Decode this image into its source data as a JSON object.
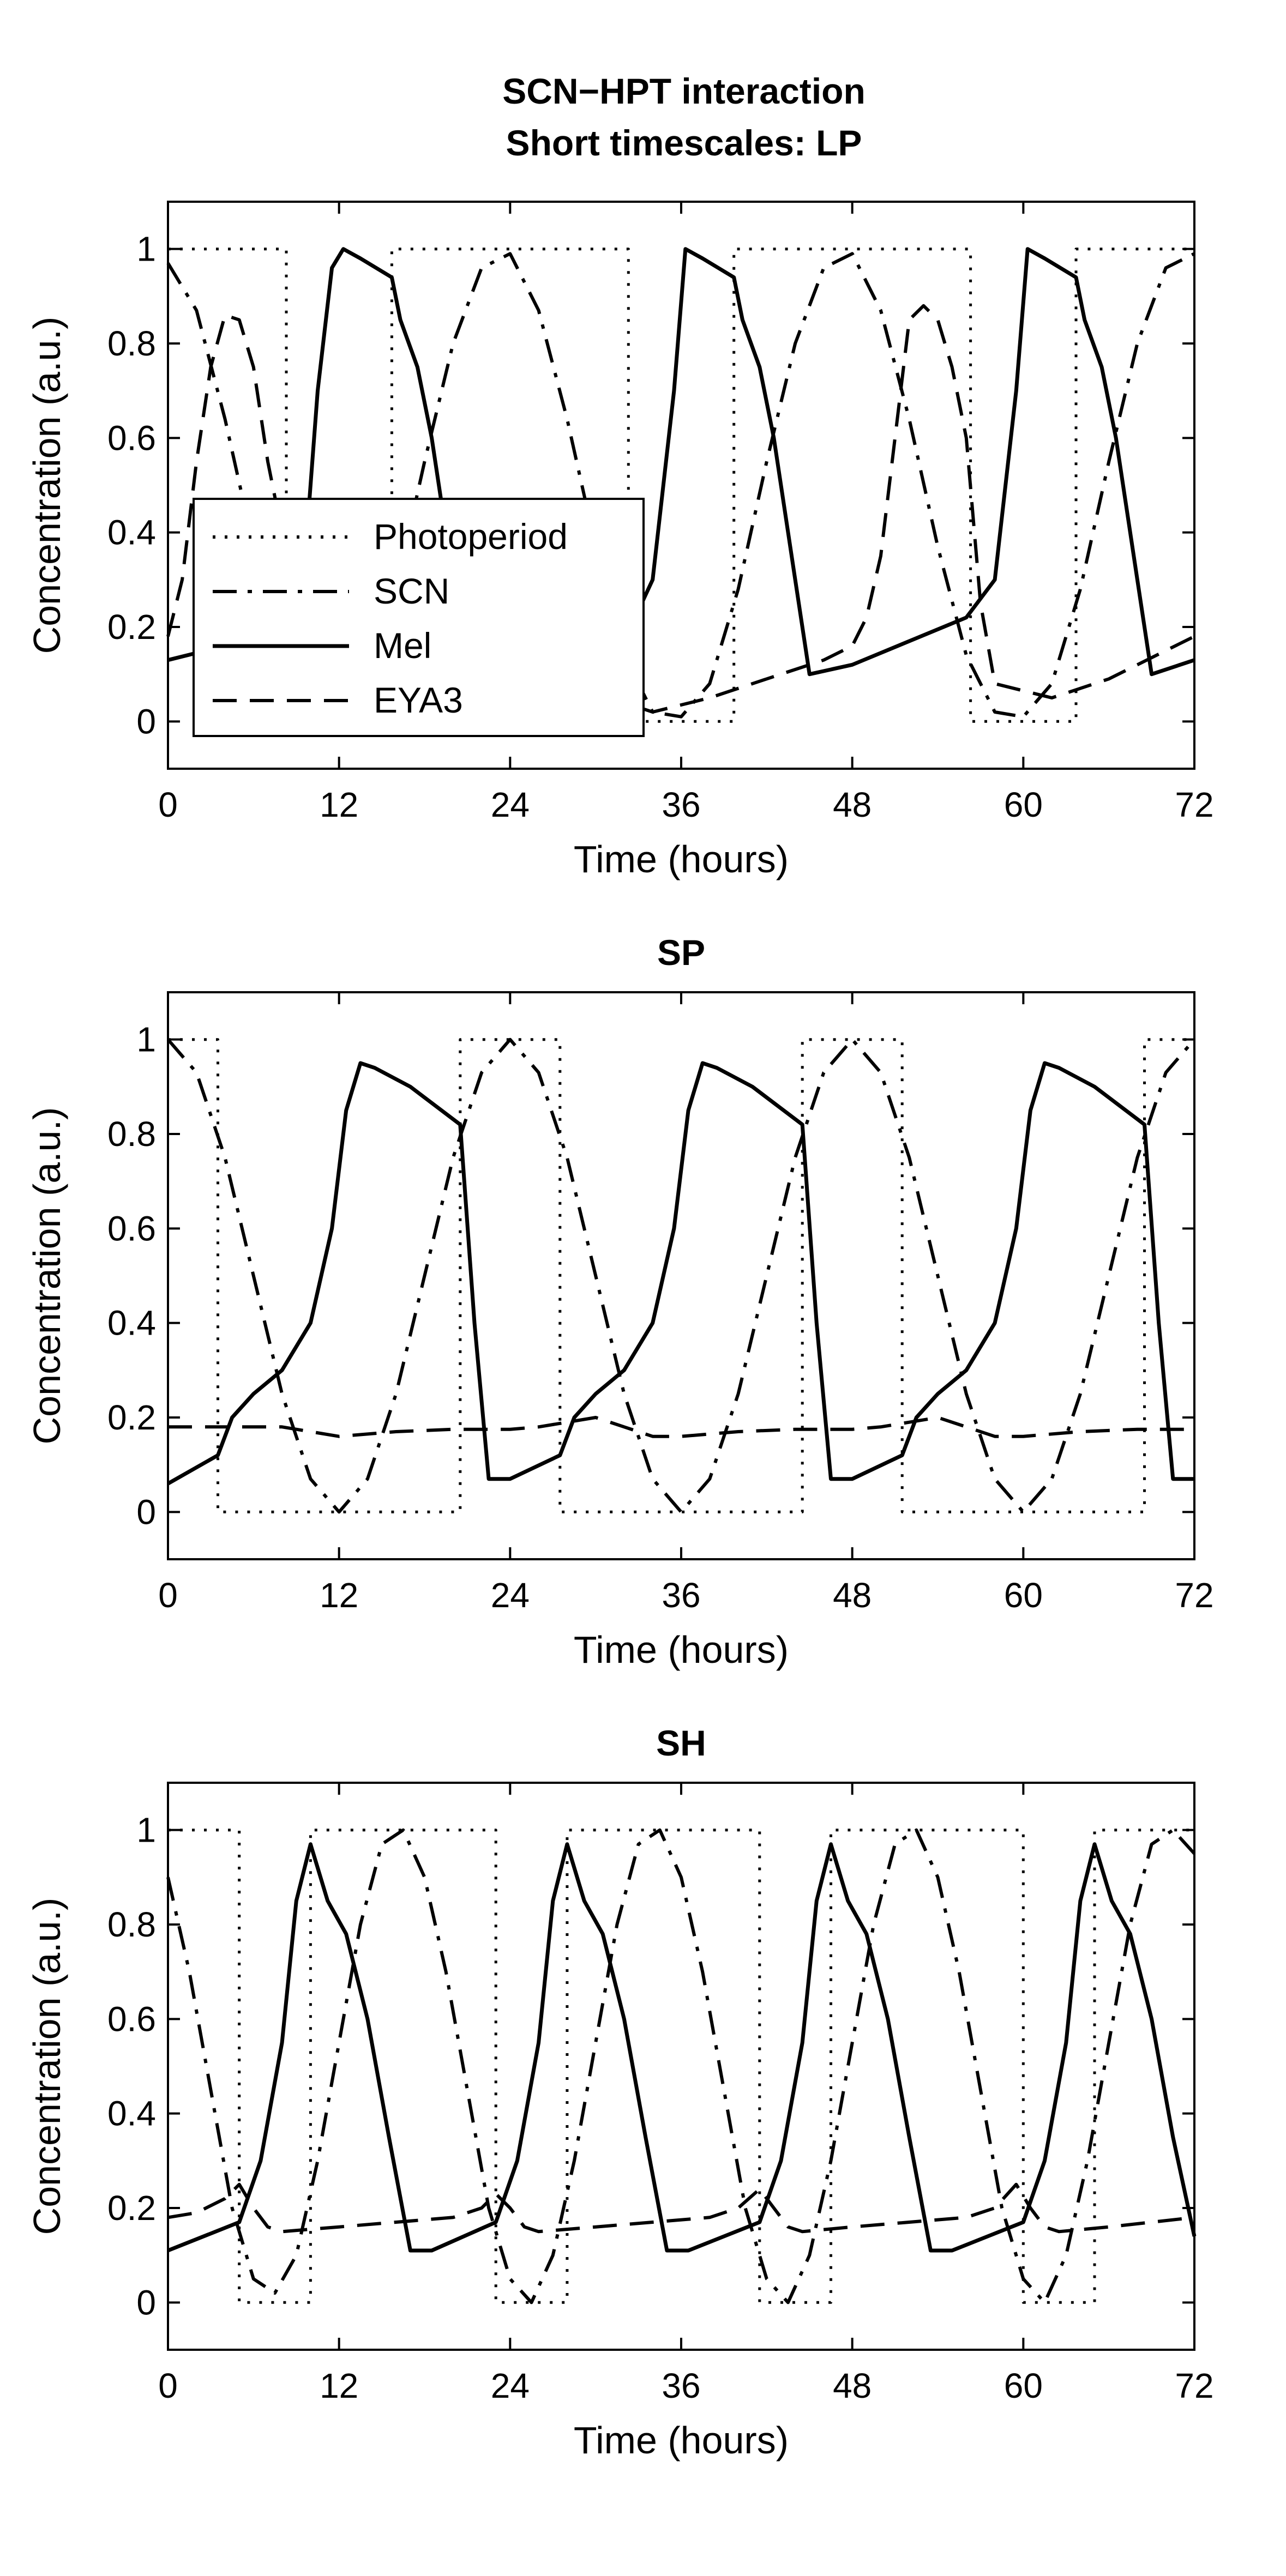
{
  "figure": {
    "title_lines": [
      "SCN−HPT interaction",
      "Short timescales: LP"
    ]
  },
  "chart_data": [
    {
      "type": "line",
      "title": "SCN−HPT interaction / Short timescales: LP",
      "xlabel": "Time (hours)",
      "ylabel": "Concentration (a.u.)",
      "xlim": [
        0,
        72
      ],
      "ylim": [
        -0.1,
        1.1
      ],
      "xticks": [
        0,
        12,
        24,
        36,
        48,
        60,
        72
      ],
      "yticks": [
        0,
        0.2,
        0.4,
        0.6,
        0.8,
        1
      ],
      "xtick_labels": [
        "0",
        "12",
        "24",
        "36",
        "48",
        "60",
        "72"
      ],
      "ytick_labels": [
        "0",
        "0.2",
        "0.4",
        "0.6",
        "0.8",
        "1"
      ],
      "grid": false,
      "legend_position": "center-left",
      "legend": [
        "Photoperiod",
        "SCN",
        "Mel",
        "EYA3"
      ],
      "series": [
        {
          "name": "Photoperiod",
          "style": "dotted",
          "x": [
            0,
            8.3,
            8.3,
            15.7,
            15.7,
            32.3,
            32.3,
            39.7,
            39.7,
            56.3,
            56.3,
            63.7,
            63.7,
            72
          ],
          "y": [
            1,
            1,
            0,
            0,
            1,
            1,
            0,
            0,
            1,
            1,
            0,
            0,
            1,
            1
          ]
        },
        {
          "name": "SCN",
          "style": "dashdot",
          "x": [
            0,
            2,
            4,
            6,
            8,
            10,
            12,
            14,
            16,
            18,
            20,
            22,
            24,
            26,
            28,
            30,
            32,
            34,
            36,
            38,
            40,
            42,
            44,
            46,
            48,
            50,
            52,
            54,
            56,
            58,
            60,
            62,
            64,
            66,
            68,
            70,
            72
          ],
          "y": [
            0.97,
            0.87,
            0.64,
            0.37,
            0.14,
            0.02,
            0.01,
            0.08,
            0.28,
            0.55,
            0.8,
            0.96,
            0.99,
            0.87,
            0.64,
            0.37,
            0.14,
            0.02,
            0.01,
            0.08,
            0.28,
            0.55,
            0.8,
            0.96,
            0.99,
            0.87,
            0.64,
            0.37,
            0.14,
            0.02,
            0.01,
            0.08,
            0.28,
            0.55,
            0.8,
            0.96,
            0.99
          ]
        },
        {
          "name": "Mel",
          "style": "solid",
          "x": [
            0,
            4,
            8,
            9.5,
            10.5,
            11.5,
            12.3,
            13.5,
            15.7,
            16.3,
            17.5,
            18.5,
            20,
            21,
            24,
            28,
            32,
            34,
            35.5,
            36.3,
            37.5,
            39.7,
            40.3,
            41.5,
            42.5,
            44,
            45,
            48,
            52,
            56,
            58,
            59.5,
            60.3,
            61.5,
            63.7,
            64.3,
            65.5,
            66.5,
            68,
            69,
            72
          ],
          "y": [
            0.13,
            0.16,
            0.19,
            0.3,
            0.7,
            0.96,
            1,
            0.98,
            0.94,
            0.85,
            0.75,
            0.6,
            0.3,
            0.1,
            0.1,
            0.13,
            0.17,
            0.3,
            0.7,
            1,
            0.98,
            0.94,
            0.85,
            0.75,
            0.6,
            0.3,
            0.1,
            0.12,
            0.17,
            0.22,
            0.3,
            0.7,
            1,
            0.98,
            0.94,
            0.85,
            0.75,
            0.6,
            0.3,
            0.1,
            0.13
          ]
        },
        {
          "name": "EYA3",
          "style": "dashed",
          "x": [
            0,
            1,
            2,
            3,
            4,
            5,
            6,
            7,
            8,
            10,
            14,
            18,
            22,
            24,
            26,
            28,
            30,
            32,
            33,
            34,
            38,
            42,
            46,
            48,
            49,
            50,
            51,
            52,
            53,
            54,
            55,
            56,
            57,
            58,
            62,
            66,
            70,
            72
          ],
          "y": [
            0.18,
            0.3,
            0.55,
            0.75,
            0.86,
            0.85,
            0.75,
            0.55,
            0.4,
            0.3,
            0.14,
            0.05,
            0.01,
            0.0,
            0.0,
            0.02,
            0.06,
            0.1,
            0.03,
            0.02,
            0.05,
            0.09,
            0.13,
            0.16,
            0.22,
            0.35,
            0.6,
            0.85,
            0.88,
            0.85,
            0.75,
            0.6,
            0.25,
            0.08,
            0.05,
            0.09,
            0.15,
            0.18
          ]
        }
      ]
    },
    {
      "type": "line",
      "title": "SP",
      "xlabel": "Time (hours)",
      "ylabel": "Concentration (a.u.)",
      "xlim": [
        0,
        72
      ],
      "ylim": [
        -0.1,
        1.1
      ],
      "xticks": [
        0,
        12,
        24,
        36,
        48,
        60,
        72
      ],
      "yticks": [
        0,
        0.2,
        0.4,
        0.6,
        0.8,
        1
      ],
      "xtick_labels": [
        "0",
        "12",
        "24",
        "36",
        "48",
        "60",
        "72"
      ],
      "ytick_labels": [
        "0",
        "0.2",
        "0.4",
        "0.6",
        "0.8",
        "1"
      ],
      "grid": false,
      "series": [
        {
          "name": "Photoperiod",
          "style": "dotted",
          "x": [
            0,
            3.5,
            3.5,
            20.5,
            20.5,
            27.5,
            27.5,
            44.5,
            44.5,
            51.5,
            51.5,
            68.5,
            68.5,
            72
          ],
          "y": [
            1,
            1,
            0,
            0,
            1,
            1,
            0,
            0,
            1,
            1,
            0,
            0,
            1,
            1
          ]
        },
        {
          "name": "SCN",
          "style": "dashdot",
          "x": [
            0,
            2,
            4,
            6,
            8,
            10,
            12,
            14,
            16,
            18,
            20,
            22,
            24,
            26,
            28,
            30,
            32,
            34,
            36,
            38,
            40,
            42,
            44,
            46,
            48,
            50,
            52,
            54,
            56,
            58,
            60,
            62,
            64,
            66,
            68,
            70,
            72
          ],
          "y": [
            1.0,
            0.93,
            0.75,
            0.5,
            0.25,
            0.07,
            0.0,
            0.07,
            0.25,
            0.5,
            0.75,
            0.93,
            1.0,
            0.93,
            0.75,
            0.5,
            0.25,
            0.07,
            0.0,
            0.07,
            0.25,
            0.5,
            0.75,
            0.93,
            1.0,
            0.93,
            0.75,
            0.5,
            0.25,
            0.07,
            0.0,
            0.07,
            0.25,
            0.5,
            0.75,
            0.93,
            1.0
          ]
        },
        {
          "name": "Mel",
          "style": "solid",
          "x": [
            0,
            3.5,
            4.5,
            6,
            8,
            10,
            11.5,
            12.5,
            13.5,
            14.5,
            17,
            20.5,
            21.5,
            22.5,
            24,
            27.5,
            28.5,
            30,
            32,
            34,
            35.5,
            36.5,
            37.5,
            38.5,
            41,
            44.5,
            45.5,
            46.5,
            48,
            51.5,
            52.5,
            54,
            56,
            58,
            59.5,
            60.5,
            61.5,
            62.5,
            65,
            68.5,
            69.5,
            70.5,
            72
          ],
          "y": [
            0.06,
            0.12,
            0.2,
            0.25,
            0.3,
            0.4,
            0.6,
            0.85,
            0.95,
            0.94,
            0.9,
            0.82,
            0.4,
            0.07,
            0.07,
            0.12,
            0.2,
            0.25,
            0.3,
            0.4,
            0.6,
            0.85,
            0.95,
            0.94,
            0.9,
            0.82,
            0.4,
            0.07,
            0.07,
            0.12,
            0.2,
            0.25,
            0.3,
            0.4,
            0.6,
            0.85,
            0.95,
            0.94,
            0.9,
            0.82,
            0.4,
            0.07,
            0.07
          ]
        },
        {
          "name": "EYA3",
          "style": "dashed",
          "x": [
            0,
            4,
            8,
            12,
            16,
            20,
            24,
            26,
            28,
            30,
            32,
            34,
            36,
            40,
            44,
            48,
            50,
            52,
            54,
            56,
            58,
            60,
            64,
            68,
            72
          ],
          "y": [
            0.18,
            0.18,
            0.18,
            0.16,
            0.17,
            0.175,
            0.175,
            0.18,
            0.19,
            0.2,
            0.18,
            0.16,
            0.16,
            0.17,
            0.175,
            0.175,
            0.18,
            0.19,
            0.2,
            0.18,
            0.16,
            0.16,
            0.17,
            0.175,
            0.175
          ]
        }
      ]
    },
    {
      "type": "line",
      "title": "SH",
      "xlabel": "Time (hours)",
      "ylabel": "Concentration (a.u.)",
      "xlim": [
        0,
        72
      ],
      "ylim": [
        -0.1,
        1.1
      ],
      "xticks": [
        0,
        12,
        24,
        36,
        48,
        60,
        72
      ],
      "yticks": [
        0,
        0.2,
        0.4,
        0.6,
        0.8,
        1
      ],
      "xtick_labels": [
        "0",
        "12",
        "24",
        "36",
        "48",
        "60",
        "72"
      ],
      "ytick_labels": [
        "0",
        "0.2",
        "0.4",
        "0.6",
        "0.8",
        "1"
      ],
      "grid": false,
      "series": [
        {
          "name": "Photoperiod",
          "style": "dotted",
          "x": [
            0,
            5,
            5,
            10,
            10,
            23,
            23,
            28,
            28,
            41.5,
            41.5,
            46.5,
            46.5,
            60,
            60,
            65,
            65,
            72
          ],
          "y": [
            1,
            1,
            0,
            0,
            1,
            1,
            0,
            0,
            1,
            1,
            0,
            0,
            1,
            1,
            0,
            0,
            1,
            1
          ]
        },
        {
          "name": "SCN",
          "style": "dashdot",
          "x": [
            0,
            1.5,
            3,
            4.5,
            6,
            7.5,
            9,
            10.5,
            12,
            13.5,
            15,
            16.5,
            18,
            19.5,
            21,
            22.5,
            24,
            25.5,
            27,
            28.5,
            30,
            31.5,
            33,
            34.5,
            36,
            37.5,
            39,
            40.5,
            42,
            43.5,
            45,
            46.5,
            48,
            49.5,
            51,
            52.5,
            54,
            55.5,
            57,
            58.5,
            60,
            61.5,
            63,
            64.5,
            66,
            67.5,
            69,
            70.5,
            72
          ],
          "y": [
            0.9,
            0.7,
            0.45,
            0.2,
            0.05,
            0.02,
            0.1,
            0.3,
            0.55,
            0.8,
            0.97,
            1.0,
            0.9,
            0.7,
            0.45,
            0.2,
            0.05,
            0.0,
            0.1,
            0.3,
            0.55,
            0.8,
            0.97,
            1.0,
            0.9,
            0.7,
            0.45,
            0.2,
            0.05,
            0.0,
            0.1,
            0.3,
            0.55,
            0.8,
            0.97,
            1.0,
            0.9,
            0.7,
            0.45,
            0.2,
            0.05,
            0.0,
            0.1,
            0.3,
            0.55,
            0.8,
            0.97,
            1.0,
            0.95
          ]
        },
        {
          "name": "Mel",
          "style": "solid",
          "x": [
            0,
            5,
            6.5,
            8,
            9,
            10,
            11.2,
            12.5,
            14,
            15.5,
            17,
            18.5,
            23,
            24.5,
            26,
            27,
            28,
            29.2,
            30.5,
            32,
            33.5,
            35,
            36.5,
            41.5,
            43,
            44.5,
            45.5,
            46.5,
            47.7,
            49,
            50.5,
            52,
            53.5,
            55,
            60,
            61.5,
            63,
            64,
            65,
            66.2,
            67.5,
            69,
            70.5,
            72
          ],
          "y": [
            0.11,
            0.17,
            0.3,
            0.55,
            0.85,
            0.97,
            0.85,
            0.78,
            0.6,
            0.35,
            0.11,
            0.11,
            0.17,
            0.3,
            0.55,
            0.85,
            0.97,
            0.85,
            0.78,
            0.6,
            0.35,
            0.11,
            0.11,
            0.17,
            0.3,
            0.55,
            0.85,
            0.97,
            0.85,
            0.78,
            0.6,
            0.35,
            0.11,
            0.11,
            0.17,
            0.3,
            0.55,
            0.85,
            0.97,
            0.85,
            0.78,
            0.6,
            0.35,
            0.14
          ]
        },
        {
          "name": "EYA3",
          "style": "dashed",
          "x": [
            0,
            2,
            4,
            5,
            6,
            7,
            8,
            12,
            16,
            20,
            22,
            23,
            24,
            25,
            26,
            30,
            34,
            38,
            40,
            41.5,
            42.5,
            43.5,
            44.5,
            48,
            52,
            56,
            58,
            59.5,
            60.5,
            61.5,
            62.5,
            66,
            72
          ],
          "y": [
            0.18,
            0.19,
            0.22,
            0.25,
            0.2,
            0.16,
            0.15,
            0.16,
            0.17,
            0.18,
            0.2,
            0.23,
            0.2,
            0.16,
            0.15,
            0.16,
            0.17,
            0.18,
            0.2,
            0.24,
            0.2,
            0.16,
            0.15,
            0.16,
            0.17,
            0.18,
            0.2,
            0.25,
            0.2,
            0.16,
            0.15,
            0.16,
            0.18
          ]
        }
      ]
    }
  ]
}
